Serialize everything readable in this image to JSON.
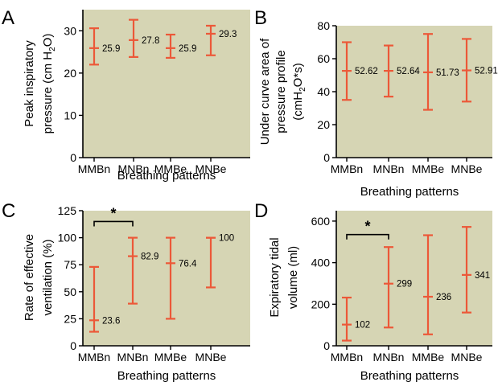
{
  "chart_data": [
    {
      "type": "errorbar",
      "panel": "A",
      "ylabel_line1": "Peak inspiratory",
      "ylabel_line2": "pressure (cm H",
      "ylabel_sub": "2",
      "ylabel_tail": "O)",
      "xlabel": "Breathing patterns",
      "ylim": [
        0,
        35
      ],
      "yticks": [
        0,
        10,
        20,
        30
      ],
      "categories": [
        "MMBn",
        "MNBn",
        "MMBe",
        "MNBe"
      ],
      "mean": [
        25.9,
        27.8,
        25.9,
        29.3
      ],
      "low": [
        22,
        23.8,
        23.6,
        24.2
      ],
      "high": [
        30.6,
        32.6,
        29.1,
        31.2
      ],
      "labels": [
        "25.9",
        "27.8",
        "25.9",
        "29.3"
      ],
      "grid": false
    },
    {
      "type": "errorbar",
      "panel": "B",
      "ylabel_line1": "Under curve area of",
      "ylabel_line2": "pressure profile",
      "ylabel_line3_pre": "(cmH",
      "ylabel_sub": "2",
      "ylabel_line3_post": "O*s)",
      "xlabel": "Breathing patterns",
      "ylim": [
        0,
        80
      ],
      "yticks": [
        0,
        20,
        40,
        60,
        80
      ],
      "categories": [
        "MMBn",
        "MNBn",
        "MMBe",
        "MNBe"
      ],
      "mean": [
        52.62,
        52.64,
        51.73,
        52.91
      ],
      "low": [
        35,
        37,
        29,
        34
      ],
      "high": [
        70,
        68,
        75,
        72
      ],
      "labels": [
        "52.62",
        "52.64",
        "51.73",
        "52.91"
      ],
      "grid": false
    },
    {
      "type": "errorbar",
      "panel": "C",
      "ylabel_line1": "Rate of effective",
      "ylabel_line2": "ventilation (%)",
      "xlabel": "Breathing patterns",
      "ylim": [
        0,
        125
      ],
      "yticks": [
        0,
        25,
        50,
        75,
        100,
        125
      ],
      "categories": [
        "MMBn",
        "MNBn",
        "MMBe",
        "MNBe"
      ],
      "mean": [
        23.6,
        82.9,
        76.4,
        100
      ],
      "low": [
        13,
        39,
        25,
        54
      ],
      "high": [
        73,
        100,
        100,
        100
      ],
      "labels": [
        "23.6",
        "82.9",
        "76.4",
        "100"
      ],
      "significance": {
        "from": 0,
        "to": 1,
        "y": 115,
        "mark": "*"
      },
      "grid": false
    },
    {
      "type": "errorbar",
      "panel": "D",
      "ylabel_line1": "Expiratory tidal",
      "ylabel_line2": "volume (ml)",
      "xlabel": "Breathing patterns",
      "ylim": [
        0,
        650
      ],
      "yticks": [
        0,
        200,
        400,
        600
      ],
      "categories": [
        "MMBn",
        "MNBn",
        "MMBe",
        "MNBe"
      ],
      "mean": [
        102,
        299,
        236,
        341
      ],
      "low": [
        25,
        88,
        55,
        160
      ],
      "high": [
        232,
        475,
        532,
        572
      ],
      "labels": [
        "102",
        "299",
        "236",
        "341"
      ],
      "significance": {
        "from": 0,
        "to": 1,
        "y": 535,
        "mark": "*"
      },
      "grid": false
    }
  ],
  "colors": {
    "plot_background": "#d6d5b4",
    "error_bar": "#ec5838",
    "axis": "#000000"
  }
}
